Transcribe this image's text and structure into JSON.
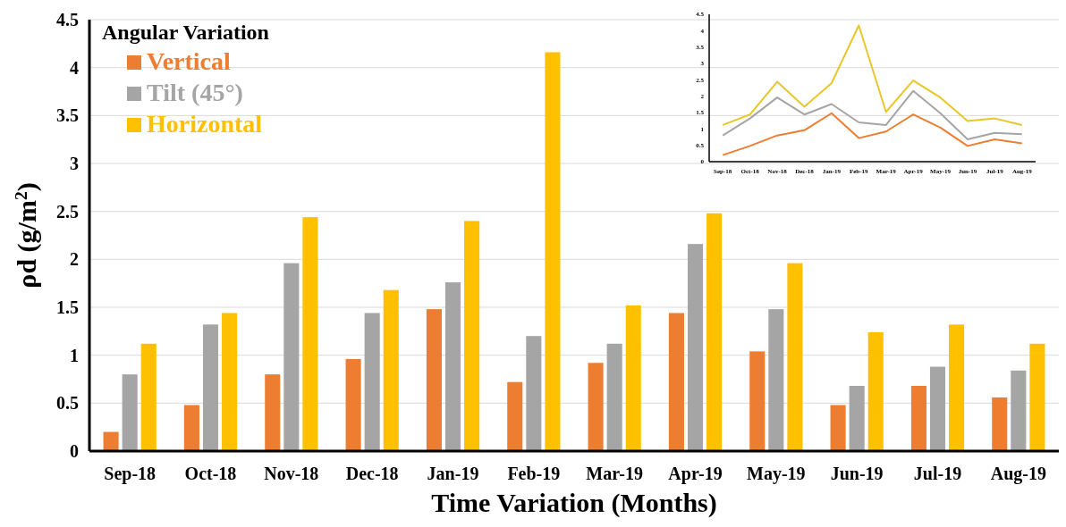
{
  "chart_data": [
    {
      "type": "bar",
      "xlabel": "Time Variation (Months)",
      "ylabel": "ρd (g/m$^{2}$)",
      "legend_title": "Angular Variation",
      "categories": [
        "Sep-18",
        "Oct-18",
        "Nov-18",
        "Dec-18",
        "Jan-19",
        "Feb-19",
        "Mar-19",
        "Apr-19",
        "May-19",
        "Jun-19",
        "Jul-19",
        "Aug-19"
      ],
      "series": [
        {
          "name": "Vertical",
          "color": "#ed7d31",
          "values": [
            0.2,
            0.48,
            0.8,
            0.96,
            1.48,
            0.72,
            0.92,
            1.44,
            1.04,
            0.48,
            0.68,
            0.56
          ]
        },
        {
          "name": "Tilt (45°)",
          "color": "#a5a5a5",
          "values": [
            0.8,
            1.32,
            1.96,
            1.44,
            1.76,
            1.2,
            1.12,
            2.16,
            1.48,
            0.68,
            0.88,
            0.84
          ]
        },
        {
          "name": "Horizontal",
          "color": "#ffc000",
          "values": [
            1.12,
            1.44,
            2.44,
            1.68,
            2.4,
            4.16,
            1.52,
            2.48,
            1.96,
            1.24,
            1.32,
            1.12
          ]
        }
      ],
      "ylim": [
        0,
        4.5
      ],
      "yticks": [
        0,
        0.5,
        1,
        1.5,
        2,
        2.5,
        3,
        3.5,
        4,
        4.5
      ],
      "grid": "y",
      "legend": "top left"
    },
    {
      "type": "line",
      "categories": [
        "Sep-18",
        "Oct-18",
        "Nov-18",
        "Dec-18",
        "Jan-19",
        "Feb-19",
        "Mar-19",
        "Apr-19",
        "May-19",
        "Jun-19",
        "Jul-19",
        "Aug-19"
      ],
      "series": [
        {
          "color": "#ed7d31",
          "values": [
            0.2,
            0.48,
            0.8,
            0.96,
            1.48,
            0.72,
            0.92,
            1.44,
            1.04,
            0.48,
            0.68,
            0.56
          ]
        },
        {
          "color": "#a5a5a5",
          "values": [
            0.8,
            1.32,
            1.96,
            1.44,
            1.76,
            1.2,
            1.12,
            2.16,
            1.48,
            0.68,
            0.88,
            0.84
          ]
        },
        {
          "color": "#e8c72a",
          "values": [
            1.12,
            1.44,
            2.44,
            1.68,
            2.4,
            4.16,
            1.52,
            2.48,
            1.96,
            1.24,
            1.32,
            1.12
          ]
        }
      ],
      "ylim": [
        0,
        4.5
      ],
      "yticks": [
        0,
        0.5,
        1,
        1.5,
        2,
        2.5,
        3,
        3.5,
        4,
        4.5
      ],
      "grid": false,
      "legend": false
    }
  ]
}
